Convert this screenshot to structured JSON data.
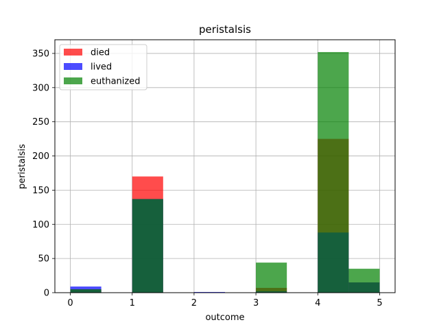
{
  "chart_data": {
    "type": "bar",
    "title": "peristalsis",
    "xlabel": "outcome",
    "ylabel": "peristalsis",
    "xlim": [
      -0.25,
      5.25
    ],
    "ylim": [
      0,
      370
    ],
    "xticks": [
      0,
      1,
      2,
      3,
      4,
      5
    ],
    "yticks": [
      0,
      50,
      100,
      150,
      200,
      250,
      300,
      350
    ],
    "grid": true,
    "legend_position": "top-left",
    "bin_width": 0.5,
    "series": [
      {
        "name": "died",
        "color": "#ff0000",
        "bins": [
          {
            "x0": 0.0,
            "x1": 0.5,
            "value": 5
          },
          {
            "x0": 1.0,
            "x1": 1.5,
            "value": 170
          },
          {
            "x0": 2.0,
            "x1": 2.5,
            "value": 0
          },
          {
            "x0": 3.0,
            "x1": 3.5,
            "value": 7
          },
          {
            "x0": 4.0,
            "x1": 4.5,
            "value": 225
          },
          {
            "x0": 4.5,
            "x1": 5.0,
            "value": 15
          }
        ]
      },
      {
        "name": "lived",
        "color": "#0000ff",
        "bins": [
          {
            "x0": 0.0,
            "x1": 0.5,
            "value": 9
          },
          {
            "x0": 1.0,
            "x1": 1.5,
            "value": 137
          },
          {
            "x0": 2.0,
            "x1": 2.5,
            "value": 1
          },
          {
            "x0": 3.0,
            "x1": 3.5,
            "value": 2
          },
          {
            "x0": 4.0,
            "x1": 4.5,
            "value": 88
          },
          {
            "x0": 4.5,
            "x1": 5.0,
            "value": 15
          }
        ]
      },
      {
        "name": "euthanized",
        "color": "#008000",
        "bins": [
          {
            "x0": 0.0,
            "x1": 0.5,
            "value": 5
          },
          {
            "x0": 1.0,
            "x1": 1.5,
            "value": 137
          },
          {
            "x0": 2.0,
            "x1": 2.5,
            "value": 0
          },
          {
            "x0": 3.0,
            "x1": 3.5,
            "value": 44
          },
          {
            "x0": 4.0,
            "x1": 4.5,
            "value": 352
          },
          {
            "x0": 4.5,
            "x1": 5.0,
            "value": 35
          }
        ]
      }
    ]
  }
}
